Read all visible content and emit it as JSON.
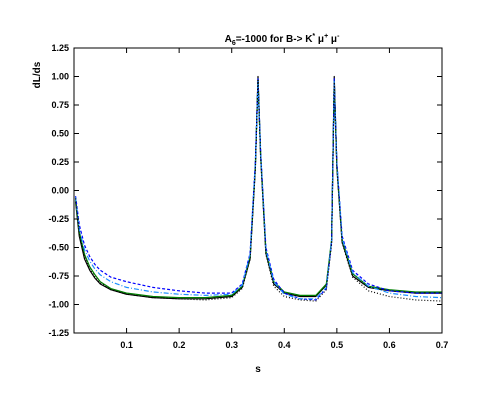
{
  "chart_data": {
    "type": "line",
    "title": {
      "a": "A",
      "a_sub": "6",
      "mid": "=-1000 for  B-> K",
      "k_sup": "*",
      "mu1": " μ",
      "mu1_sup": "+",
      "mu2": " μ",
      "mu2_sup": "-"
    },
    "xlabel": "s",
    "ylabel": "dL/ds",
    "xlim": [
      0.0,
      0.7
    ],
    "ylim": [
      -1.25,
      1.25
    ],
    "xticks": [
      0.1,
      0.2,
      0.3,
      0.4,
      0.5,
      0.6,
      0.7
    ],
    "xtick_labels": [
      "0.1",
      "0.2",
      "0.3",
      "0.4",
      "0.5",
      "0.6",
      "0.7"
    ],
    "yticks": [
      -1.25,
      -1.0,
      -0.75,
      -0.5,
      -0.25,
      0.0,
      0.25,
      0.5,
      0.75,
      1.0,
      1.25
    ],
    "ytick_labels": [
      "-1.25",
      "-1.00",
      "-0.75",
      "-0.50",
      "-0.25",
      "0.00",
      "0.25",
      "0.50",
      "0.75",
      "1.00",
      "1.25"
    ],
    "grid": false,
    "legend": false,
    "series": [
      {
        "color": "#000000",
        "dash": "",
        "x": [
          0.003,
          0.01,
          0.02,
          0.03,
          0.04,
          0.05,
          0.07,
          0.1,
          0.15,
          0.2,
          0.25,
          0.3,
          0.32,
          0.335,
          0.345,
          0.35,
          0.355,
          0.365,
          0.38,
          0.4,
          0.43,
          0.46,
          0.48,
          0.49,
          0.495,
          0.5,
          0.51,
          0.53,
          0.56,
          0.6,
          0.65,
          0.7
        ],
        "y": [
          -0.1,
          -0.4,
          -0.6,
          -0.7,
          -0.77,
          -0.82,
          -0.87,
          -0.91,
          -0.94,
          -0.95,
          -0.95,
          -0.93,
          -0.85,
          -0.6,
          0.2,
          1.0,
          0.3,
          -0.55,
          -0.82,
          -0.9,
          -0.93,
          -0.93,
          -0.83,
          -0.45,
          1.0,
          0.2,
          -0.45,
          -0.75,
          -0.85,
          -0.88,
          -0.9,
          -0.9
        ]
      },
      {
        "color": "#008000",
        "dash": "",
        "x": [
          0.003,
          0.01,
          0.02,
          0.03,
          0.04,
          0.05,
          0.07,
          0.1,
          0.15,
          0.2,
          0.25,
          0.3,
          0.32,
          0.335,
          0.345,
          0.35,
          0.355,
          0.365,
          0.38,
          0.4,
          0.43,
          0.46,
          0.48,
          0.49,
          0.495,
          0.5,
          0.51,
          0.53,
          0.56,
          0.6,
          0.65,
          0.7
        ],
        "y": [
          -0.08,
          -0.36,
          -0.56,
          -0.67,
          -0.74,
          -0.8,
          -0.86,
          -0.9,
          -0.93,
          -0.94,
          -0.94,
          -0.92,
          -0.84,
          -0.58,
          0.22,
          0.98,
          0.32,
          -0.53,
          -0.8,
          -0.89,
          -0.92,
          -0.92,
          -0.82,
          -0.43,
          0.97,
          0.22,
          -0.43,
          -0.73,
          -0.84,
          -0.87,
          -0.89,
          -0.89
        ]
      },
      {
        "color": "#0000ff",
        "dash": "3,2",
        "x": [
          0.003,
          0.01,
          0.02,
          0.03,
          0.04,
          0.05,
          0.07,
          0.1,
          0.15,
          0.2,
          0.25,
          0.3,
          0.32,
          0.335,
          0.345,
          0.35,
          0.355,
          0.365,
          0.38,
          0.4,
          0.43,
          0.46,
          0.48,
          0.49,
          0.495,
          0.5,
          0.51,
          0.53,
          0.56,
          0.6,
          0.65,
          0.7
        ],
        "y": [
          -0.05,
          -0.3,
          -0.48,
          -0.58,
          -0.65,
          -0.7,
          -0.76,
          -0.8,
          -0.85,
          -0.88,
          -0.9,
          -0.9,
          -0.82,
          -0.55,
          0.25,
          0.98,
          0.35,
          -0.5,
          -0.78,
          -0.9,
          -0.95,
          -0.96,
          -0.86,
          -0.45,
          0.98,
          0.25,
          -0.4,
          -0.7,
          -0.82,
          -0.88,
          -0.9,
          -0.9
        ]
      },
      {
        "color": "#1e90ff",
        "dash": "5,2,1,2",
        "x": [
          0.003,
          0.01,
          0.02,
          0.03,
          0.04,
          0.05,
          0.07,
          0.1,
          0.15,
          0.2,
          0.25,
          0.3,
          0.32,
          0.335,
          0.345,
          0.35,
          0.355,
          0.365,
          0.38,
          0.4,
          0.43,
          0.46,
          0.48,
          0.49,
          0.495,
          0.5,
          0.51,
          0.53,
          0.56,
          0.6,
          0.65,
          0.7
        ],
        "y": [
          -0.06,
          -0.34,
          -0.52,
          -0.62,
          -0.69,
          -0.74,
          -0.8,
          -0.85,
          -0.89,
          -0.91,
          -0.92,
          -0.91,
          -0.83,
          -0.56,
          0.24,
          0.96,
          0.33,
          -0.52,
          -0.8,
          -0.91,
          -0.95,
          -0.95,
          -0.85,
          -0.44,
          0.96,
          0.24,
          -0.42,
          -0.72,
          -0.84,
          -0.9,
          -0.93,
          -0.94
        ]
      },
      {
        "color": "#000000",
        "dash": "1,2",
        "x": [
          0.003,
          0.01,
          0.02,
          0.03,
          0.04,
          0.05,
          0.07,
          0.1,
          0.15,
          0.2,
          0.25,
          0.3,
          0.32,
          0.335,
          0.345,
          0.35,
          0.355,
          0.365,
          0.38,
          0.4,
          0.43,
          0.46,
          0.48,
          0.49,
          0.495,
          0.5,
          0.51,
          0.53,
          0.56,
          0.6,
          0.65,
          0.7
        ],
        "y": [
          -0.07,
          -0.38,
          -0.58,
          -0.69,
          -0.76,
          -0.81,
          -0.87,
          -0.91,
          -0.94,
          -0.95,
          -0.96,
          -0.94,
          -0.86,
          -0.6,
          0.2,
          0.97,
          0.3,
          -0.56,
          -0.84,
          -0.93,
          -0.96,
          -0.97,
          -0.87,
          -0.47,
          0.95,
          0.2,
          -0.46,
          -0.76,
          -0.88,
          -0.93,
          -0.96,
          -0.97
        ]
      }
    ]
  }
}
